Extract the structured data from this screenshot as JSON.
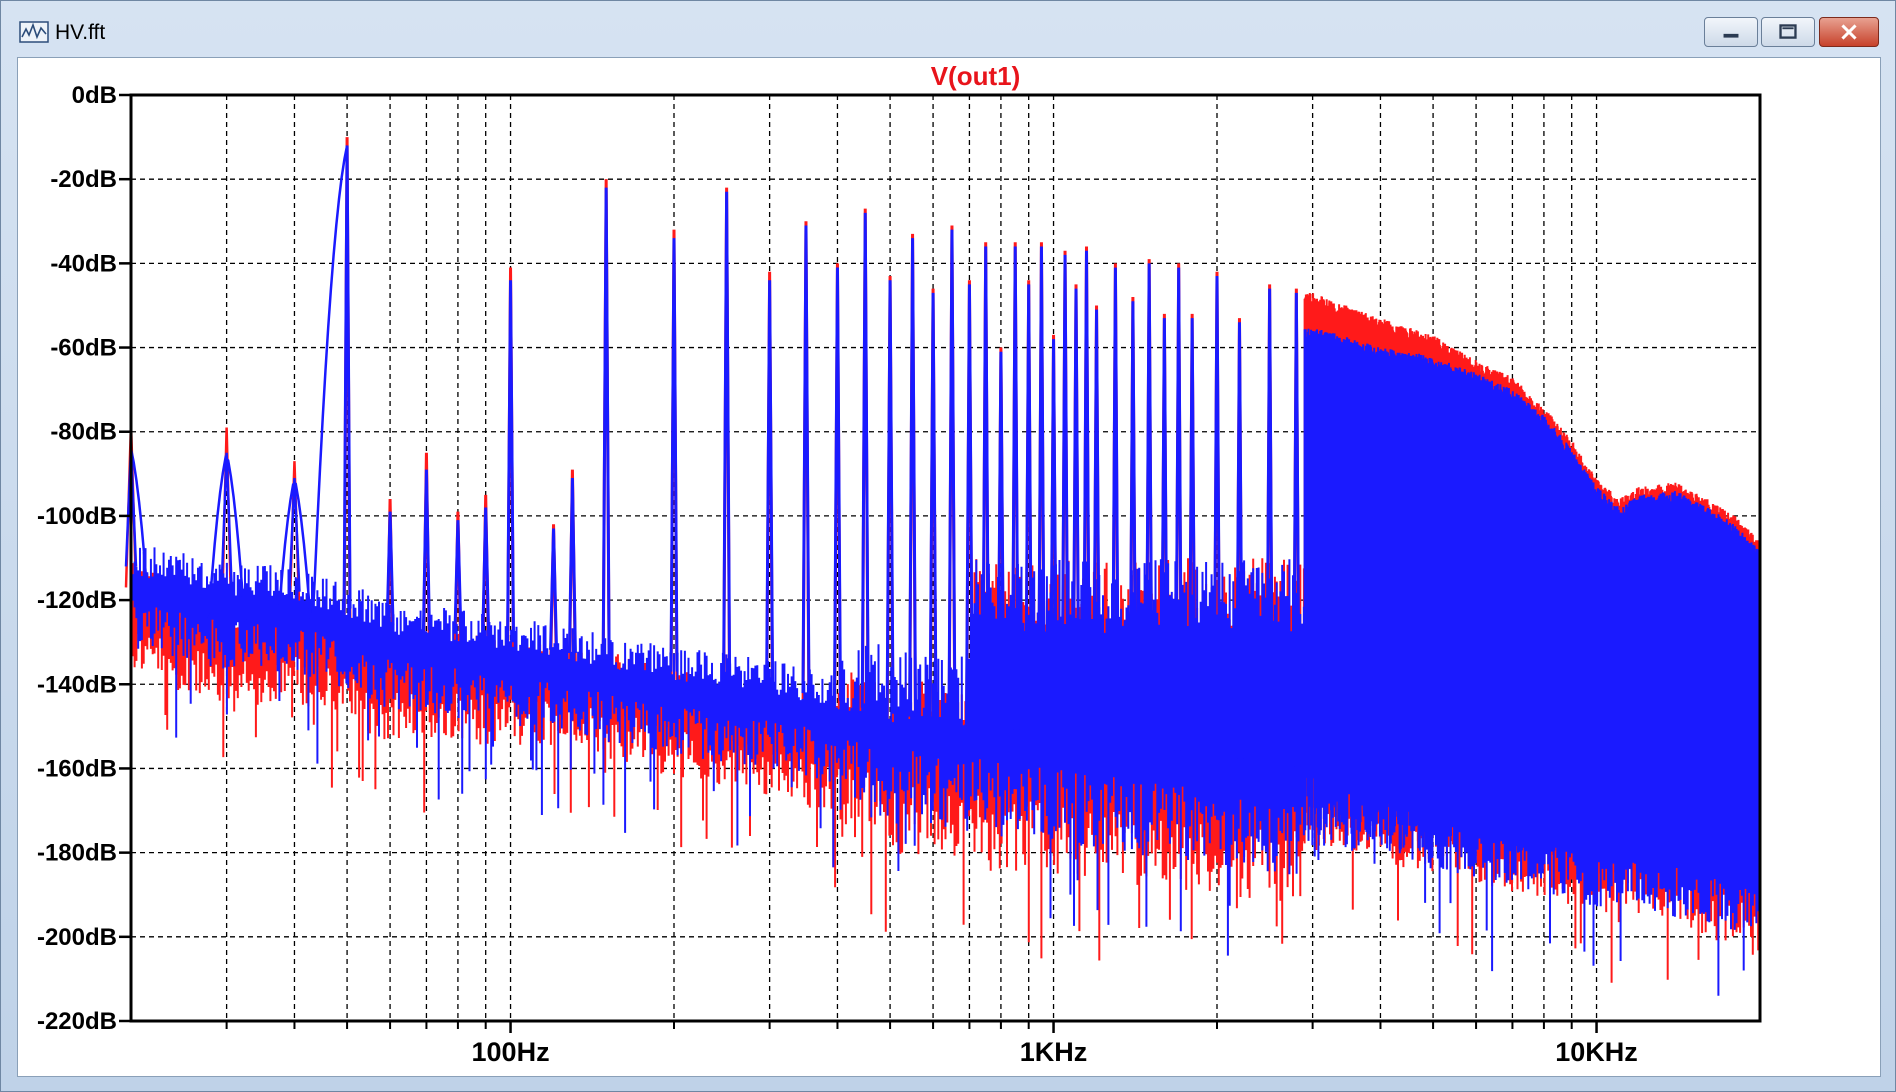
{
  "window": {
    "title": "HV.fft",
    "app_icon": "ltspice-waveform-icon",
    "buttons": [
      "minimize-icon",
      "maximize-icon",
      "close-icon"
    ]
  },
  "chart_data": {
    "type": "line",
    "title": "V(out1)",
    "title_color": "#e8141b",
    "xscale": "log",
    "xlim": [
      20,
      20000
    ],
    "ylim": [
      -220,
      0
    ],
    "grid": true,
    "x_tick_labels": [
      {
        "value": 100,
        "label": "100Hz"
      },
      {
        "value": 1000,
        "label": "1KHz"
      },
      {
        "value": 10000,
        "label": "10KHz"
      }
    ],
    "y_tick_labels": [
      {
        "value": 0,
        "label": "0dB"
      },
      {
        "value": -20,
        "label": "-20dB"
      },
      {
        "value": -40,
        "label": "-40dB"
      },
      {
        "value": -60,
        "label": "-60dB"
      },
      {
        "value": -80,
        "label": "-80dB"
      },
      {
        "value": -100,
        "label": "-100dB"
      },
      {
        "value": -120,
        "label": "-120dB"
      },
      {
        "value": -140,
        "label": "-140dB"
      },
      {
        "value": -160,
        "label": "-160dB"
      },
      {
        "value": -180,
        "label": "-180dB"
      },
      {
        "value": -200,
        "label": "-200dB"
      },
      {
        "value": -220,
        "label": "-220dB"
      }
    ],
    "series": [
      {
        "color": "#ff1a1a",
        "peaks": [
          {
            "f": 20,
            "db": -78
          },
          {
            "f": 30,
            "db": -79
          },
          {
            "f": 40,
            "db": -87
          },
          {
            "f": 50,
            "db": -10
          },
          {
            "f": 60,
            "db": -96
          },
          {
            "f": 70,
            "db": -85
          },
          {
            "f": 80,
            "db": -99
          },
          {
            "f": 90,
            "db": -95
          },
          {
            "f": 100,
            "db": -41
          },
          {
            "f": 120,
            "db": -102
          },
          {
            "f": 130,
            "db": -89
          },
          {
            "f": 150,
            "db": -20
          },
          {
            "f": 200,
            "db": -32
          },
          {
            "f": 250,
            "db": -22
          },
          {
            "f": 300,
            "db": -42
          },
          {
            "f": 350,
            "db": -30
          },
          {
            "f": 400,
            "db": -40
          },
          {
            "f": 450,
            "db": -27
          },
          {
            "f": 500,
            "db": -43
          },
          {
            "f": 550,
            "db": -33
          },
          {
            "f": 600,
            "db": -46
          },
          {
            "f": 650,
            "db": -31
          },
          {
            "f": 700,
            "db": -44
          },
          {
            "f": 750,
            "db": -35
          },
          {
            "f": 800,
            "db": -60
          },
          {
            "f": 850,
            "db": -35
          },
          {
            "f": 900,
            "db": -44
          },
          {
            "f": 950,
            "db": -35
          },
          {
            "f": 1000,
            "db": -57
          },
          {
            "f": 1050,
            "db": -37
          },
          {
            "f": 1100,
            "db": -45
          },
          {
            "f": 1150,
            "db": -36
          },
          {
            "f": 1200,
            "db": -50
          },
          {
            "f": 1300,
            "db": -40
          },
          {
            "f": 1400,
            "db": -48
          },
          {
            "f": 1500,
            "db": -39
          },
          {
            "f": 1600,
            "db": -52
          },
          {
            "f": 1700,
            "db": -40
          },
          {
            "f": 1800,
            "db": -52
          },
          {
            "f": 2000,
            "db": -42
          },
          {
            "f": 2200,
            "db": -53
          },
          {
            "f": 2500,
            "db": -45
          },
          {
            "f": 2800,
            "db": -46
          }
        ],
        "noise_floor": [
          [
            20,
            -125
          ],
          [
            30,
            -135
          ],
          [
            40,
            -132
          ],
          [
            50,
            -138
          ],
          [
            60,
            -142
          ],
          [
            80,
            -142
          ],
          [
            100,
            -143
          ],
          [
            150,
            -146
          ],
          [
            200,
            -150
          ],
          [
            300,
            -155
          ],
          [
            500,
            -162
          ],
          [
            1000,
            -168
          ],
          [
            2000,
            -172
          ],
          [
            5000,
            -180
          ],
          [
            10000,
            -187
          ],
          [
            20000,
            -193
          ]
        ],
        "envelope_top": [
          [
            3000,
            -47
          ],
          [
            4000,
            -53
          ],
          [
            5000,
            -57
          ],
          [
            6000,
            -63
          ],
          [
            7000,
            -67
          ],
          [
            8000,
            -74
          ],
          [
            9000,
            -82
          ],
          [
            10000,
            -91
          ],
          [
            11000,
            -96
          ],
          [
            12000,
            -93
          ],
          [
            14000,
            -92
          ],
          [
            16000,
            -96
          ],
          [
            18000,
            -100
          ],
          [
            20000,
            -106
          ]
        ],
        "envelope_bottom": [
          [
            3000,
            -170
          ],
          [
            5000,
            -180
          ],
          [
            8000,
            -185
          ],
          [
            10000,
            -188
          ],
          [
            15000,
            -192
          ],
          [
            20000,
            -200
          ]
        ]
      },
      {
        "color": "#1a1aff",
        "peaks": [
          {
            "f": 20,
            "db": -84
          },
          {
            "f": 30,
            "db": -85
          },
          {
            "f": 40,
            "db": -91
          },
          {
            "f": 50,
            "db": -12
          },
          {
            "f": 60,
            "db": -99
          },
          {
            "f": 70,
            "db": -89
          },
          {
            "f": 80,
            "db": -101
          },
          {
            "f": 90,
            "db": -98
          },
          {
            "f": 100,
            "db": -44
          },
          {
            "f": 120,
            "db": -103
          },
          {
            "f": 130,
            "db": -91
          },
          {
            "f": 150,
            "db": -22
          },
          {
            "f": 200,
            "db": -34
          },
          {
            "f": 250,
            "db": -23
          },
          {
            "f": 300,
            "db": -44
          },
          {
            "f": 350,
            "db": -31
          },
          {
            "f": 400,
            "db": -41
          },
          {
            "f": 450,
            "db": -28
          },
          {
            "f": 500,
            "db": -44
          },
          {
            "f": 550,
            "db": -34
          },
          {
            "f": 600,
            "db": -47
          },
          {
            "f": 650,
            "db": -32
          },
          {
            "f": 700,
            "db": -45
          },
          {
            "f": 750,
            "db": -36
          },
          {
            "f": 800,
            "db": -61
          },
          {
            "f": 850,
            "db": -36
          },
          {
            "f": 900,
            "db": -45
          },
          {
            "f": 950,
            "db": -36
          },
          {
            "f": 1000,
            "db": -58
          },
          {
            "f": 1050,
            "db": -38
          },
          {
            "f": 1100,
            "db": -46
          },
          {
            "f": 1150,
            "db": -37
          },
          {
            "f": 1200,
            "db": -51
          },
          {
            "f": 1300,
            "db": -41
          },
          {
            "f": 1400,
            "db": -49
          },
          {
            "f": 1500,
            "db": -40
          },
          {
            "f": 1600,
            "db": -53
          },
          {
            "f": 1700,
            "db": -41
          },
          {
            "f": 1800,
            "db": -53
          },
          {
            "f": 2000,
            "db": -43
          },
          {
            "f": 2200,
            "db": -54
          },
          {
            "f": 2500,
            "db": -46
          },
          {
            "f": 2800,
            "db": -47
          }
        ],
        "noise_floor": [
          [
            20,
            -120
          ],
          [
            30,
            -125
          ],
          [
            40,
            -126
          ],
          [
            50,
            -130
          ],
          [
            60,
            -134
          ],
          [
            80,
            -136
          ],
          [
            100,
            -138
          ],
          [
            150,
            -142
          ],
          [
            200,
            -145
          ],
          [
            300,
            -148
          ],
          [
            500,
            -155
          ],
          [
            1000,
            -160
          ],
          [
            2000,
            -165
          ],
          [
            5000,
            -172
          ],
          [
            10000,
            -180
          ],
          [
            20000,
            -190
          ]
        ],
        "envelope_top": [
          [
            3000,
            -55
          ],
          [
            4000,
            -60
          ],
          [
            5000,
            -62
          ],
          [
            6000,
            -66
          ],
          [
            7000,
            -70
          ],
          [
            8000,
            -76
          ],
          [
            9000,
            -84
          ],
          [
            10000,
            -93
          ],
          [
            11000,
            -98
          ],
          [
            12000,
            -95
          ],
          [
            14000,
            -94
          ],
          [
            16000,
            -98
          ],
          [
            18000,
            -102
          ],
          [
            20000,
            -108
          ]
        ],
        "envelope_bottom": [
          [
            3000,
            -165
          ],
          [
            5000,
            -178
          ],
          [
            8000,
            -184
          ],
          [
            10000,
            -187
          ],
          [
            15000,
            -190
          ],
          [
            20000,
            -195
          ]
        ]
      }
    ]
  }
}
